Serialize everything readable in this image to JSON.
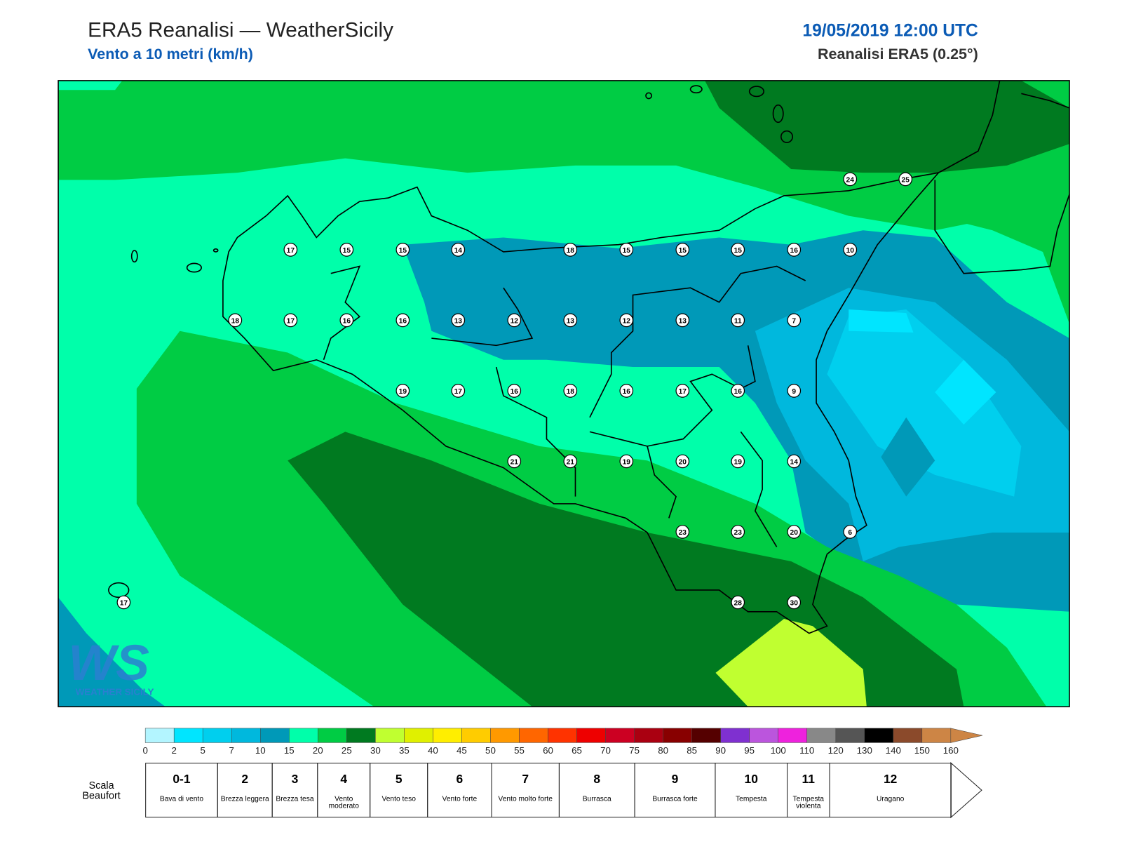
{
  "header": {
    "title": "ERA5 Reanalisi — WeatherSicily",
    "subtitle": "Vento a 10 metri (km/h)",
    "date": "19/05/2019 12:00 UTC",
    "source": "Reanalisi ERA5 (0.25°)"
  },
  "map": {
    "station_values": [
      24,
      25,
      17,
      15,
      15,
      14,
      18,
      15,
      15,
      15,
      16,
      10,
      18,
      17,
      16,
      16,
      13,
      12,
      13,
      12,
      13,
      11,
      7,
      19,
      17,
      16,
      18,
      16,
      17,
      16,
      9,
      21,
      21,
      19,
      20,
      19,
      14,
      23,
      23,
      20,
      6,
      28,
      30,
      17
    ]
  },
  "logo": {
    "mark": "WS",
    "text": "WEATHER SICILY"
  },
  "legend": {
    "ticks": [
      0,
      2,
      5,
      7,
      10,
      15,
      20,
      25,
      30,
      35,
      40,
      45,
      50,
      55,
      60,
      65,
      70,
      75,
      80,
      85,
      90,
      95,
      100,
      110,
      120,
      130,
      140,
      150,
      160
    ],
    "colors": [
      "#b3f5ff",
      "#00e5ff",
      "#00cfee",
      "#00b8dd",
      "#0099b8",
      "#00ffaa",
      "#00cc44",
      "#007a20",
      "#c0ff30",
      "#e0f000",
      "#ffee00",
      "#ffcc00",
      "#ff9900",
      "#ff6600",
      "#ff3300",
      "#ee0000",
      "#cc0022",
      "#aa0011",
      "#880000",
      "#550000",
      "#7f30d0",
      "#bb55dd",
      "#ee22dd",
      "#888888",
      "#555555",
      "#000000",
      "#8b4a2b",
      "#cd8545"
    ],
    "extend_color": "#cd8545"
  },
  "beaufort": {
    "title": "Scala Beaufort",
    "levels": [
      {
        "force": "0-1",
        "label": "Bava di vento"
      },
      {
        "force": "2",
        "label": "Brezza leggera"
      },
      {
        "force": "3",
        "label": "Brezza tesa"
      },
      {
        "force": "4",
        "label": "Vento moderato"
      },
      {
        "force": "5",
        "label": "Vento teso"
      },
      {
        "force": "6",
        "label": "Vento forte"
      },
      {
        "force": "7",
        "label": "Vento molto forte"
      },
      {
        "force": "8",
        "label": "Burrasca"
      },
      {
        "force": "9",
        "label": "Burrasca forte"
      },
      {
        "force": "10",
        "label": "Tempesta"
      },
      {
        "force": "11",
        "label": "Tempesta violenta"
      },
      {
        "force": "12",
        "label": "Uragano"
      }
    ]
  }
}
